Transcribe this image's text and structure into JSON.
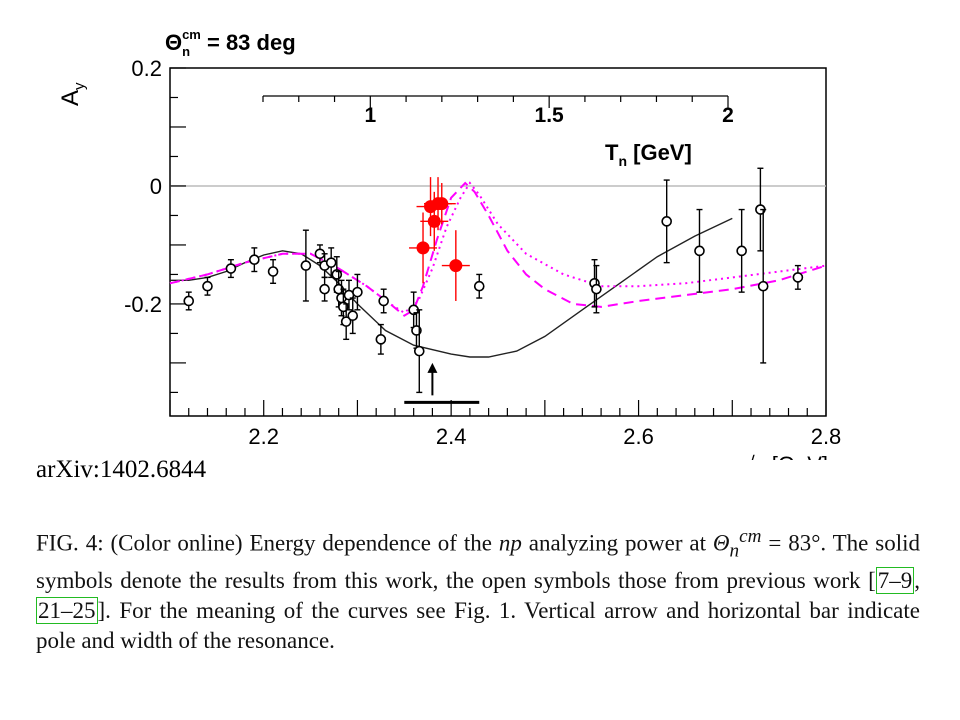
{
  "chart_data": {
    "type": "scatter",
    "title_main": "Θ",
    "title_sub": "n",
    "title_sup": "cm",
    "title_tail": " = 83 deg",
    "ylabel_main": "A",
    "ylabel_sub": "y",
    "xlabel": "√s [GeV]",
    "xlim": [
      2.1,
      2.8
    ],
    "ylim": [
      -0.39,
      0.2
    ],
    "y_ticks": [
      {
        "v": 0.2,
        "label": "0.2"
      },
      {
        "v": 0,
        "label": "0"
      },
      {
        "v": -0.2,
        "label": "-0.2"
      }
    ],
    "x_ticks": [
      {
        "v": 2.2,
        "label": "2.2"
      },
      {
        "v": 2.4,
        "label": "2.4"
      },
      {
        "v": 2.6,
        "label": "2.6"
      },
      {
        "v": 2.8,
        "label": "2.8"
      }
    ],
    "top_axis": {
      "label_main": "T",
      "label_sub": "n",
      "label_tail": " [GeV]",
      "ticks": [
        {
          "v": 1,
          "label": "1"
        },
        {
          "v": 1.5,
          "label": "1.5"
        },
        {
          "v": 2,
          "label": "2"
        }
      ]
    },
    "open_points": [
      {
        "x": 2.12,
        "y": -0.195,
        "e": 0.015
      },
      {
        "x": 2.14,
        "y": -0.17,
        "e": 0.015
      },
      {
        "x": 2.165,
        "y": -0.14,
        "e": 0.015
      },
      {
        "x": 2.19,
        "y": -0.125,
        "e": 0.02
      },
      {
        "x": 2.21,
        "y": -0.145,
        "e": 0.02
      },
      {
        "x": 2.245,
        "y": -0.135,
        "e": 0.06
      },
      {
        "x": 2.26,
        "y": -0.115,
        "e": 0.015
      },
      {
        "x": 2.265,
        "y": -0.135,
        "e": 0.02
      },
      {
        "x": 2.265,
        "y": -0.175,
        "e": 0.02
      },
      {
        "x": 2.272,
        "y": -0.13,
        "e": 0.025
      },
      {
        "x": 2.278,
        "y": -0.15,
        "e": 0.03
      },
      {
        "x": 2.28,
        "y": -0.175,
        "e": 0.03
      },
      {
        "x": 2.283,
        "y": -0.19,
        "e": 0.03
      },
      {
        "x": 2.285,
        "y": -0.205,
        "e": 0.03
      },
      {
        "x": 2.288,
        "y": -0.23,
        "e": 0.03
      },
      {
        "x": 2.291,
        "y": -0.185,
        "e": 0.025
      },
      {
        "x": 2.295,
        "y": -0.22,
        "e": 0.03
      },
      {
        "x": 2.3,
        "y": -0.18,
        "e": 0.03
      },
      {
        "x": 2.325,
        "y": -0.26,
        "e": 0.025
      },
      {
        "x": 2.328,
        "y": -0.195,
        "e": 0.02
      },
      {
        "x": 2.36,
        "y": -0.21,
        "e": 0.03
      },
      {
        "x": 2.363,
        "y": -0.245,
        "e": 0.03
      },
      {
        "x": 2.366,
        "y": -0.28,
        "e": 0.07
      },
      {
        "x": 2.43,
        "y": -0.17,
        "e": 0.02
      },
      {
        "x": 2.553,
        "y": -0.165,
        "e": 0.04
      },
      {
        "x": 2.555,
        "y": -0.175,
        "e": 0.04
      },
      {
        "x": 2.63,
        "y": -0.06,
        "e": 0.07
      },
      {
        "x": 2.665,
        "y": -0.11,
        "e": 0.07
      },
      {
        "x": 2.71,
        "y": -0.11,
        "e": 0.07
      },
      {
        "x": 2.73,
        "y": -0.04,
        "e": 0.07
      },
      {
        "x": 2.733,
        "y": -0.17,
        "e": 0.13
      },
      {
        "x": 2.77,
        "y": -0.155,
        "e": 0.02
      }
    ],
    "solid_points": [
      {
        "x": 2.37,
        "y": -0.105,
        "e": 0.06
      },
      {
        "x": 2.378,
        "y": -0.035,
        "e": 0.05
      },
      {
        "x": 2.382,
        "y": -0.06,
        "e": 0.05
      },
      {
        "x": 2.386,
        "y": -0.03,
        "e": 0.045
      },
      {
        "x": 2.39,
        "y": -0.03,
        "e": 0.035
      },
      {
        "x": 2.405,
        "y": -0.135,
        "e": 0.06
      }
    ],
    "solid_curve": [
      [
        2.1,
        -0.16
      ],
      [
        2.12,
        -0.16
      ],
      [
        2.14,
        -0.155
      ],
      [
        2.16,
        -0.145
      ],
      [
        2.18,
        -0.13
      ],
      [
        2.2,
        -0.117
      ],
      [
        2.22,
        -0.11
      ],
      [
        2.24,
        -0.115
      ],
      [
        2.26,
        -0.135
      ],
      [
        2.28,
        -0.165
      ],
      [
        2.3,
        -0.2
      ],
      [
        2.33,
        -0.245
      ],
      [
        2.36,
        -0.27
      ],
      [
        2.4,
        -0.285
      ],
      [
        2.42,
        -0.29
      ],
      [
        2.44,
        -0.29
      ],
      [
        2.47,
        -0.28
      ],
      [
        2.5,
        -0.255
      ],
      [
        2.54,
        -0.21
      ],
      [
        2.58,
        -0.165
      ],
      [
        2.62,
        -0.12
      ],
      [
        2.66,
        -0.085
      ],
      [
        2.7,
        -0.055
      ]
    ],
    "dashed_curve": [
      [
        2.1,
        -0.165
      ],
      [
        2.14,
        -0.15
      ],
      [
        2.18,
        -0.13
      ],
      [
        2.22,
        -0.115
      ],
      [
        2.25,
        -0.115
      ],
      [
        2.28,
        -0.14
      ],
      [
        2.31,
        -0.17
      ],
      [
        2.335,
        -0.2
      ],
      [
        2.35,
        -0.22
      ],
      [
        2.36,
        -0.21
      ],
      [
        2.37,
        -0.17
      ],
      [
        2.385,
        -0.09
      ],
      [
        2.4,
        -0.02
      ],
      [
        2.415,
        0.005
      ],
      [
        2.425,
        -0.01
      ],
      [
        2.44,
        -0.05
      ],
      [
        2.46,
        -0.11
      ],
      [
        2.48,
        -0.15
      ],
      [
        2.5,
        -0.175
      ],
      [
        2.53,
        -0.2
      ],
      [
        2.56,
        -0.205
      ],
      [
        2.6,
        -0.195
      ],
      [
        2.65,
        -0.185
      ],
      [
        2.7,
        -0.175
      ],
      [
        2.75,
        -0.16
      ],
      [
        2.8,
        -0.135
      ]
    ],
    "dotted_curve": [
      [
        2.1,
        -0.165
      ],
      [
        2.14,
        -0.15
      ],
      [
        2.18,
        -0.13
      ],
      [
        2.22,
        -0.115
      ],
      [
        2.25,
        -0.115
      ],
      [
        2.28,
        -0.14
      ],
      [
        2.31,
        -0.17
      ],
      [
        2.335,
        -0.2
      ],
      [
        2.35,
        -0.215
      ],
      [
        2.365,
        -0.195
      ],
      [
        2.38,
        -0.14
      ],
      [
        2.395,
        -0.07
      ],
      [
        2.41,
        -0.02
      ],
      [
        2.42,
        0.005
      ],
      [
        2.43,
        -0.015
      ],
      [
        2.45,
        -0.065
      ],
      [
        2.48,
        -0.115
      ],
      [
        2.52,
        -0.15
      ],
      [
        2.56,
        -0.17
      ],
      [
        2.6,
        -0.17
      ],
      [
        2.65,
        -0.165
      ],
      [
        2.7,
        -0.155
      ],
      [
        2.75,
        -0.145
      ],
      [
        2.8,
        -0.135
      ]
    ],
    "pole_arrow": {
      "x": 2.38,
      "y_from": -0.355,
      "y_to": -0.3
    },
    "width_bar": {
      "x1": 2.35,
      "x2": 2.43,
      "y": -0.367
    },
    "colors": {
      "solid": "#ff0000",
      "open": "#000000",
      "dashed": "#ff00ff",
      "dotted": "#ff00ff",
      "zero_line": "#bbbbbb"
    },
    "grid": false
  },
  "source_label": "arXiv:1402.6844",
  "caption": {
    "p1": "FIG. 4: (Color online) Energy dependence of the ",
    "np": "np",
    "p2": " analyzing power at ",
    "theta": "Θ",
    "n": "n",
    "cm": "cm",
    "p3": " = 83°. The solid symbols denote the results from this work, the open symbols those from previous work [",
    "ref1": "7–9",
    "p4": ", ",
    "ref2": "21–25",
    "p5": "]. For the meaning of the curves see Fig. 1. Vertical arrow and horizontal bar indicate pole and width of the resonance."
  }
}
